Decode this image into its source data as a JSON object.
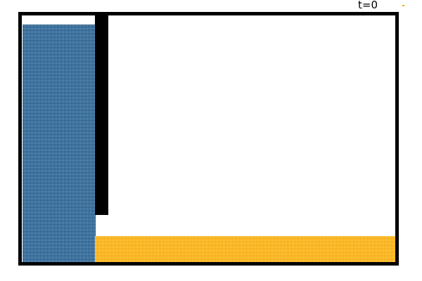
{
  "time_label": "t=0",
  "colors": {
    "frame": "#000000",
    "fluid_left": "#2a6da0",
    "fluid_right": "#ffb300",
    "background": "#ffffff",
    "corner_marker": "#ffa500"
  }
}
